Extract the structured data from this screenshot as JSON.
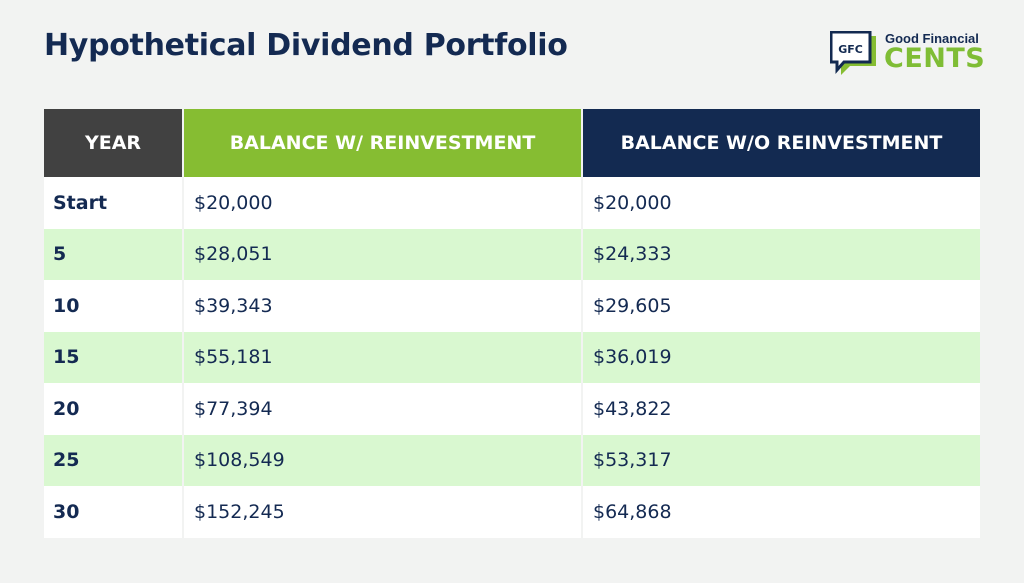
{
  "title": "Hypothetical Dividend Portfolio",
  "logo": {
    "mark_text": "GFC",
    "line1": "Good Financial",
    "line2": "CENTS",
    "colors": {
      "navy": "#132a51",
      "green": "#86bd32"
    }
  },
  "colors": {
    "year_header": "#414141",
    "reinvest_header": "#86bd32",
    "no_reinvest_header": "#132a51",
    "row_alt": "#d9f8d0",
    "text": "#142a52"
  },
  "chart_data": {
    "type": "table",
    "title": "Hypothetical Dividend Portfolio",
    "columns": [
      "YEAR",
      "BALANCE W/ REINVESTMENT",
      "BALANCE W/O REINVESTMENT"
    ],
    "rows": [
      [
        "Start",
        "$20,000",
        "$20,000"
      ],
      [
        "5",
        "$28,051",
        "$24,333"
      ],
      [
        "10",
        "$39,343",
        "$29,605"
      ],
      [
        "15",
        "$55,181",
        "$36,019"
      ],
      [
        "20",
        "$77,394",
        "$43,822"
      ],
      [
        "25",
        "$108,549",
        "$53,317"
      ],
      [
        "30",
        "$152,245",
        "$64,868"
      ]
    ],
    "categories": [
      "Start",
      "5",
      "10",
      "15",
      "20",
      "25",
      "30"
    ],
    "series": [
      {
        "name": "BALANCE W/ REINVESTMENT",
        "values": [
          20000,
          28051,
          39343,
          55181,
          77394,
          108549,
          152245
        ]
      },
      {
        "name": "BALANCE W/O REINVESTMENT",
        "values": [
          20000,
          24333,
          29605,
          36019,
          43822,
          53317,
          64868
        ]
      }
    ]
  }
}
